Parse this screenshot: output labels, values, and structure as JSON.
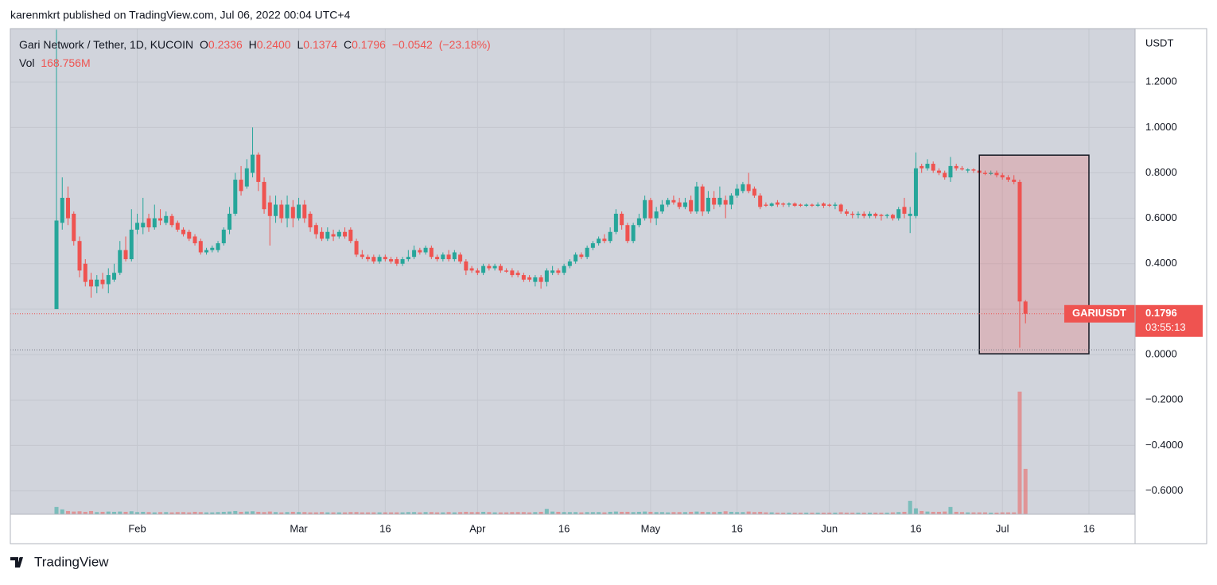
{
  "chart_data": {
    "type": "candlestick",
    "published": "karenmkrt published on TradingView.com, Jul 06, 2022 00:04 UTC+4",
    "branding": "TradingView",
    "title": "Gari Network / Tether, 1D, KUCOIN",
    "legend": {
      "ohlc": [
        {
          "key": "O",
          "value": 0.2336
        },
        {
          "key": "H",
          "value": 0.24,
          "label": "0.2400"
        },
        {
          "key": "L",
          "value": 0.1374
        },
        {
          "key": "C",
          "value": 0.1796
        }
      ],
      "change": {
        "value": -0.0542,
        "label": "−0.0542"
      },
      "change_pct": {
        "value": -23.18,
        "label": "(−23.18%)"
      },
      "volume_key": "Vol",
      "volume": {
        "value": 168.756,
        "label": "168.756M"
      }
    },
    "currency": "USDT",
    "countdown": "03:55:13",
    "xlim": [
      "2022-01-10",
      "2022-07-24"
    ],
    "xticks": [
      {
        "value": "2022-02-01",
        "label": "Feb"
      },
      {
        "value": "2022-03-01",
        "label": "Mar"
      },
      {
        "value": "2022-03-16",
        "label": "16"
      },
      {
        "value": "2022-04-01",
        "label": "Apr"
      },
      {
        "value": "2022-04-16",
        "label": "16"
      },
      {
        "value": "2022-05-01",
        "label": "May"
      },
      {
        "value": "2022-05-16",
        "label": "16"
      },
      {
        "value": "2022-06-01",
        "label": "Jun"
      },
      {
        "value": "2022-06-16",
        "label": "16"
      },
      {
        "value": "2022-07-01",
        "label": "Jul"
      },
      {
        "value": "2022-07-16",
        "label": "16"
      }
    ],
    "ylim": [
      -0.703,
      1.435
    ],
    "yticks": [
      {
        "value": 1.2,
        "label": "1.2000"
      },
      {
        "value": 1.0,
        "label": "1.0000"
      },
      {
        "value": 0.8,
        "label": "0.8000"
      },
      {
        "value": 0.6,
        "label": "0.6000"
      },
      {
        "value": 0.4,
        "label": "0.4000"
      },
      {
        "value": 0.2,
        "label": "0.2000"
      },
      {
        "value": 0,
        "label": "0.0000"
      },
      {
        "value": -0.2,
        "label": "−0.2000"
      },
      {
        "value": -0.4,
        "label": "−0.4000"
      },
      {
        "value": -0.6,
        "label": "−0.6000"
      }
    ],
    "hidden_tick_labels": [
      5
    ],
    "volume_lim": [
      0,
      600
    ],
    "grid": true,
    "dotted_level": {
      "value": 0.021,
      "color": "#787b86"
    },
    "rectangle": {
      "x": [
        "2022-06-27",
        "2022-07-16"
      ],
      "y": [
        0.878,
        0.0035
      ],
      "fill": "rgba(239,83,80,0.22)",
      "stroke": "#131722"
    },
    "x": [
      "2022-01-18",
      "2022-01-19",
      "2022-01-20",
      "2022-01-21",
      "2022-01-22",
      "2022-01-23",
      "2022-01-24",
      "2022-01-25",
      "2022-01-26",
      "2022-01-27",
      "2022-01-28",
      "2022-01-29",
      "2022-01-30",
      "2022-01-31",
      "2022-02-01",
      "2022-02-02",
      "2022-02-03",
      "2022-02-04",
      "2022-02-05",
      "2022-02-06",
      "2022-02-07",
      "2022-02-08",
      "2022-02-09",
      "2022-02-10",
      "2022-02-11",
      "2022-02-12",
      "2022-02-13",
      "2022-02-14",
      "2022-02-15",
      "2022-02-16",
      "2022-02-17",
      "2022-02-18",
      "2022-02-19",
      "2022-02-20",
      "2022-02-21",
      "2022-02-22",
      "2022-02-23",
      "2022-02-24",
      "2022-02-25",
      "2022-02-26",
      "2022-02-27",
      "2022-02-28",
      "2022-03-01",
      "2022-03-02",
      "2022-03-03",
      "2022-03-04",
      "2022-03-05",
      "2022-03-06",
      "2022-03-07",
      "2022-03-08",
      "2022-03-09",
      "2022-03-10",
      "2022-03-11",
      "2022-03-12",
      "2022-03-13",
      "2022-03-14",
      "2022-03-15",
      "2022-03-16",
      "2022-03-17",
      "2022-03-18",
      "2022-03-19",
      "2022-03-20",
      "2022-03-21",
      "2022-03-22",
      "2022-03-23",
      "2022-03-24",
      "2022-03-25",
      "2022-03-26",
      "2022-03-27",
      "2022-03-28",
      "2022-03-29",
      "2022-03-30",
      "2022-03-31",
      "2022-04-01",
      "2022-04-02",
      "2022-04-03",
      "2022-04-04",
      "2022-04-05",
      "2022-04-06",
      "2022-04-07",
      "2022-04-08",
      "2022-04-09",
      "2022-04-10",
      "2022-04-11",
      "2022-04-12",
      "2022-04-13",
      "2022-04-14",
      "2022-04-15",
      "2022-04-16",
      "2022-04-17",
      "2022-04-18",
      "2022-04-19",
      "2022-04-20",
      "2022-04-21",
      "2022-04-22",
      "2022-04-23",
      "2022-04-24",
      "2022-04-25",
      "2022-04-26",
      "2022-04-27",
      "2022-04-28",
      "2022-04-29",
      "2022-04-30",
      "2022-05-01",
      "2022-05-02",
      "2022-05-03",
      "2022-05-04",
      "2022-05-05",
      "2022-05-06",
      "2022-05-07",
      "2022-05-08",
      "2022-05-09",
      "2022-05-10",
      "2022-05-11",
      "2022-05-12",
      "2022-05-13",
      "2022-05-14",
      "2022-05-15",
      "2022-05-16",
      "2022-05-17",
      "2022-05-18",
      "2022-05-19",
      "2022-05-20",
      "2022-05-21",
      "2022-05-22",
      "2022-05-23",
      "2022-05-24",
      "2022-05-25",
      "2022-05-26",
      "2022-05-27",
      "2022-05-28",
      "2022-05-29",
      "2022-05-30",
      "2022-05-31",
      "2022-06-01",
      "2022-06-02",
      "2022-06-03",
      "2022-06-04",
      "2022-06-05",
      "2022-06-06",
      "2022-06-07",
      "2022-06-08",
      "2022-06-09",
      "2022-06-10",
      "2022-06-11",
      "2022-06-12",
      "2022-06-13",
      "2022-06-14",
      "2022-06-15",
      "2022-06-16",
      "2022-06-17",
      "2022-06-18",
      "2022-06-19",
      "2022-06-20",
      "2022-06-21",
      "2022-06-22",
      "2022-06-23",
      "2022-06-24",
      "2022-06-25",
      "2022-06-26",
      "2022-06-27",
      "2022-06-28",
      "2022-06-29",
      "2022-06-30",
      "2022-07-01",
      "2022-07-02",
      "2022-07-03",
      "2022-07-04",
      "2022-07-05"
    ],
    "series": [
      {
        "name": "GARIUSDT",
        "up_color": "#26a69a",
        "down_color": "#ef5350",
        "open": [
          0.2,
          0.58,
          0.69,
          0.62,
          0.5,
          0.4,
          0.33,
          0.3,
          0.33,
          0.31,
          0.33,
          0.36,
          0.46,
          0.42,
          0.55,
          0.56,
          0.6,
          0.56,
          0.6,
          0.58,
          0.61,
          0.58,
          0.55,
          0.54,
          0.52,
          0.5,
          0.45,
          0.46,
          0.46,
          0.49,
          0.55,
          0.62,
          0.77,
          0.74,
          0.8,
          0.88,
          0.76,
          0.67,
          0.61,
          0.66,
          0.6,
          0.65,
          0.6,
          0.66,
          0.62,
          0.57,
          0.54,
          0.51,
          0.53,
          0.52,
          0.54,
          0.55,
          0.5,
          0.44,
          0.43,
          0.43,
          0.41,
          0.43,
          0.42,
          0.42,
          0.4,
          0.42,
          0.43,
          0.46,
          0.45,
          0.47,
          0.43,
          0.42,
          0.44,
          0.42,
          0.44,
          0.41,
          0.38,
          0.37,
          0.36,
          0.39,
          0.38,
          0.39,
          0.37,
          0.37,
          0.36,
          0.35,
          0.34,
          0.32,
          0.34,
          0.32,
          0.36,
          0.37,
          0.36,
          0.39,
          0.41,
          0.44,
          0.43,
          0.47,
          0.49,
          0.51,
          0.5,
          0.54,
          0.62,
          0.57,
          0.5,
          0.57,
          0.6,
          0.68,
          0.6,
          0.63,
          0.66,
          0.68,
          0.67,
          0.65,
          0.68,
          0.63,
          0.74,
          0.63,
          0.69,
          0.66,
          0.68,
          0.66,
          0.7,
          0.72,
          0.75,
          0.73,
          0.7,
          0.66,
          0.655,
          0.67,
          0.665,
          0.66,
          0.665,
          0.66,
          0.655,
          0.66,
          0.655,
          0.665,
          0.66,
          0.655,
          0.66,
          0.63,
          0.62,
          0.615,
          0.62,
          0.61,
          0.62,
          0.615,
          0.61,
          0.615,
          0.6,
          0.65,
          0.61,
          0.61,
          0.83,
          0.82,
          0.84,
          0.81,
          0.8,
          0.78,
          0.83,
          0.82,
          0.81,
          0.815,
          0.81,
          0.8,
          0.795,
          0.8,
          0.79,
          0.78,
          0.77,
          0.76,
          0.2336
        ],
        "high": [
          1.43,
          0.78,
          0.74,
          0.63,
          0.52,
          0.42,
          0.36,
          0.35,
          0.36,
          0.38,
          0.4,
          0.5,
          0.52,
          0.64,
          0.62,
          0.69,
          0.62,
          0.66,
          0.64,
          0.63,
          0.62,
          0.59,
          0.56,
          0.55,
          0.53,
          0.51,
          0.47,
          0.48,
          0.5,
          0.56,
          0.65,
          0.8,
          0.83,
          0.86,
          1.0,
          0.89,
          0.78,
          0.7,
          0.7,
          0.68,
          0.7,
          0.68,
          0.69,
          0.68,
          0.63,
          0.58,
          0.56,
          0.56,
          0.55,
          0.55,
          0.56,
          0.56,
          0.51,
          0.46,
          0.44,
          0.44,
          0.44,
          0.44,
          0.43,
          0.43,
          0.43,
          0.46,
          0.48,
          0.47,
          0.48,
          0.48,
          0.44,
          0.45,
          0.46,
          0.46,
          0.45,
          0.42,
          0.39,
          0.38,
          0.4,
          0.4,
          0.4,
          0.4,
          0.38,
          0.38,
          0.37,
          0.36,
          0.35,
          0.35,
          0.35,
          0.38,
          0.39,
          0.38,
          0.4,
          0.42,
          0.45,
          0.45,
          0.48,
          0.5,
          0.52,
          0.53,
          0.56,
          0.64,
          0.63,
          0.58,
          0.58,
          0.62,
          0.7,
          0.69,
          0.65,
          0.68,
          0.69,
          0.7,
          0.69,
          0.69,
          0.7,
          0.76,
          0.75,
          0.72,
          0.72,
          0.74,
          0.7,
          0.71,
          0.75,
          0.76,
          0.8,
          0.74,
          0.71,
          0.67,
          0.67,
          0.68,
          0.67,
          0.67,
          0.67,
          0.665,
          0.665,
          0.665,
          0.67,
          0.67,
          0.665,
          0.67,
          0.665,
          0.64,
          0.63,
          0.63,
          0.63,
          0.63,
          0.625,
          0.62,
          0.62,
          0.62,
          0.65,
          0.69,
          0.65,
          0.89,
          0.84,
          0.86,
          0.85,
          0.82,
          0.81,
          0.87,
          0.84,
          0.83,
          0.82,
          0.82,
          0.815,
          0.81,
          0.81,
          0.81,
          0.8,
          0.79,
          0.79,
          0.77,
          0.24
        ],
        "low": [
          0.2,
          0.55,
          0.57,
          0.48,
          0.34,
          0.3,
          0.25,
          0.27,
          0.29,
          0.27,
          0.32,
          0.35,
          0.41,
          0.41,
          0.53,
          0.53,
          0.54,
          0.55,
          0.57,
          0.57,
          0.56,
          0.54,
          0.52,
          0.5,
          0.48,
          0.44,
          0.44,
          0.45,
          0.45,
          0.48,
          0.53,
          0.61,
          0.7,
          0.73,
          0.78,
          0.72,
          0.62,
          0.48,
          0.58,
          0.58,
          0.56,
          0.56,
          0.59,
          0.58,
          0.54,
          0.51,
          0.5,
          0.5,
          0.5,
          0.51,
          0.51,
          0.49,
          0.43,
          0.42,
          0.41,
          0.4,
          0.4,
          0.41,
          0.4,
          0.39,
          0.39,
          0.41,
          0.42,
          0.44,
          0.44,
          0.42,
          0.41,
          0.41,
          0.41,
          0.41,
          0.4,
          0.35,
          0.36,
          0.35,
          0.35,
          0.37,
          0.37,
          0.36,
          0.36,
          0.34,
          0.34,
          0.32,
          0.32,
          0.3,
          0.29,
          0.3,
          0.35,
          0.35,
          0.35,
          0.38,
          0.4,
          0.42,
          0.42,
          0.46,
          0.48,
          0.49,
          0.49,
          0.53,
          0.55,
          0.49,
          0.49,
          0.56,
          0.59,
          0.58,
          0.57,
          0.62,
          0.65,
          0.66,
          0.64,
          0.64,
          0.62,
          0.62,
          0.61,
          0.62,
          0.64,
          0.65,
          0.6,
          0.64,
          0.69,
          0.71,
          0.71,
          0.69,
          0.64,
          0.65,
          0.65,
          0.65,
          0.65,
          0.65,
          0.65,
          0.65,
          0.65,
          0.65,
          0.65,
          0.645,
          0.65,
          0.64,
          0.62,
          0.61,
          0.6,
          0.6,
          0.6,
          0.6,
          0.6,
          0.59,
          0.6,
          0.59,
          0.59,
          0.6,
          0.535,
          0.6,
          0.8,
          0.81,
          0.8,
          0.79,
          0.77,
          0.76,
          0.81,
          0.81,
          0.8,
          0.8,
          0.79,
          0.79,
          0.79,
          0.78,
          0.77,
          0.76,
          0.75,
          0.03,
          0.1374
        ],
        "close": [
          0.59,
          0.69,
          0.6,
          0.5,
          0.37,
          0.32,
          0.3,
          0.33,
          0.31,
          0.35,
          0.36,
          0.46,
          0.42,
          0.55,
          0.58,
          0.58,
          0.56,
          0.6,
          0.59,
          0.61,
          0.57,
          0.55,
          0.53,
          0.51,
          0.49,
          0.45,
          0.46,
          0.47,
          0.49,
          0.55,
          0.62,
          0.77,
          0.72,
          0.82,
          0.88,
          0.76,
          0.64,
          0.61,
          0.66,
          0.6,
          0.66,
          0.6,
          0.66,
          0.6,
          0.56,
          0.53,
          0.51,
          0.54,
          0.52,
          0.54,
          0.52,
          0.5,
          0.44,
          0.43,
          0.42,
          0.41,
          0.43,
          0.42,
          0.41,
          0.4,
          0.42,
          0.43,
          0.46,
          0.45,
          0.47,
          0.43,
          0.42,
          0.44,
          0.42,
          0.45,
          0.41,
          0.37,
          0.37,
          0.36,
          0.39,
          0.38,
          0.39,
          0.37,
          0.365,
          0.35,
          0.35,
          0.33,
          0.33,
          0.34,
          0.32,
          0.37,
          0.37,
          0.36,
          0.39,
          0.41,
          0.44,
          0.43,
          0.47,
          0.49,
          0.51,
          0.5,
          0.54,
          0.62,
          0.57,
          0.5,
          0.57,
          0.6,
          0.68,
          0.6,
          0.63,
          0.66,
          0.68,
          0.67,
          0.65,
          0.67,
          0.63,
          0.74,
          0.63,
          0.69,
          0.66,
          0.69,
          0.66,
          0.7,
          0.73,
          0.75,
          0.72,
          0.7,
          0.65,
          0.655,
          0.665,
          0.66,
          0.66,
          0.665,
          0.655,
          0.655,
          0.66,
          0.655,
          0.66,
          0.655,
          0.655,
          0.66,
          0.63,
          0.62,
          0.615,
          0.62,
          0.61,
          0.62,
          0.61,
          0.61,
          0.615,
          0.6,
          0.64,
          0.62,
          0.62,
          0.82,
          0.82,
          0.84,
          0.81,
          0.8,
          0.78,
          0.83,
          0.82,
          0.815,
          0.815,
          0.81,
          0.8,
          0.795,
          0.8,
          0.79,
          0.78,
          0.77,
          0.76,
          0.2338,
          0.1796
        ],
        "volume": [
          27,
          18,
          12,
          10,
          11,
          9,
          12,
          8,
          9,
          10,
          9,
          10,
          9,
          11,
          8,
          9,
          8,
          7,
          8,
          8,
          7,
          8,
          8,
          7,
          9,
          8,
          7,
          7,
          8,
          9,
          10,
          12,
          9,
          10,
          11,
          9,
          8,
          10,
          8,
          7,
          8,
          9,
          8,
          8,
          7,
          7,
          8,
          7,
          7,
          7,
          7,
          8,
          8,
          7,
          7,
          7,
          7,
          7,
          7,
          7,
          7,
          8,
          8,
          7,
          8,
          8,
          7,
          7,
          8,
          7,
          8,
          9,
          8,
          8,
          9,
          8,
          7,
          7,
          7,
          8,
          8,
          8,
          7,
          8,
          9,
          20,
          10,
          9,
          8,
          8,
          8,
          7,
          8,
          8,
          8,
          7,
          9,
          10,
          9,
          9,
          8,
          9,
          10,
          9,
          8,
          8,
          7,
          8,
          8,
          8,
          9,
          10,
          9,
          8,
          8,
          9,
          11,
          9,
          8,
          8,
          10,
          8,
          9,
          7,
          7,
          6,
          6,
          6,
          6,
          6,
          6,
          6,
          6,
          6,
          6,
          6,
          7,
          6,
          6,
          6,
          6,
          6,
          6,
          6,
          6,
          7,
          8,
          9,
          50,
          22,
          12,
          10,
          9,
          9,
          10,
          27,
          9,
          8,
          7,
          7,
          7,
          7,
          6,
          6,
          7,
          7,
          7,
          456,
          168.756
        ]
      }
    ]
  }
}
